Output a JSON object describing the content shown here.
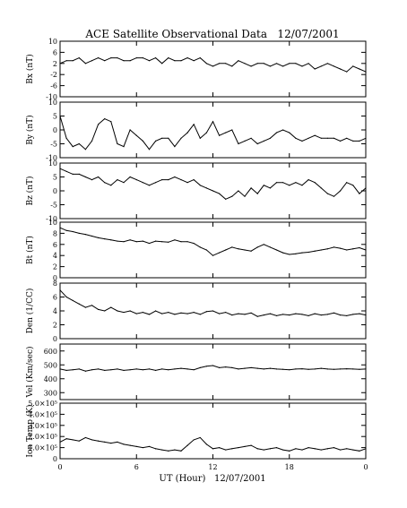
{
  "chart_data": {
    "type": "line",
    "title": "ACE Satellite Observational Data   12/07/2001",
    "xlabel": "UT (Hour)   12/07/2001",
    "x_ticks": [
      "0",
      "6",
      "12",
      "18",
      "0"
    ],
    "x_range_hours": [
      0,
      24
    ],
    "panels": [
      {
        "ylabel": "Bx (nT)",
        "ylim": [
          -10,
          10
        ],
        "yticks": [
          "10",
          "6",
          "2",
          "-2",
          "-6",
          "-10"
        ],
        "ytick_values": [
          10,
          6,
          2,
          -2,
          -6,
          -10
        ],
        "x": [
          0,
          0.5,
          1,
          1.5,
          2,
          2.5,
          3,
          3.5,
          4,
          4.5,
          5,
          5.5,
          6,
          6.5,
          7,
          7.5,
          8,
          8.5,
          9,
          9.5,
          10,
          10.5,
          11,
          11.5,
          12,
          12.5,
          13,
          13.5,
          14,
          14.5,
          15,
          15.5,
          16,
          16.5,
          17,
          17.5,
          18,
          18.5,
          19,
          19.5,
          20,
          20.5,
          21,
          21.5,
          22,
          22.5,
          23,
          23.5,
          24
        ],
        "values": [
          2,
          3,
          3,
          4,
          2,
          3,
          4,
          3,
          4,
          4,
          3,
          3,
          4,
          4,
          3,
          4,
          2,
          4,
          3,
          3,
          4,
          3,
          4,
          2,
          1,
          2,
          2,
          1,
          3,
          2,
          1,
          2,
          2,
          1,
          2,
          1,
          2,
          2,
          1,
          2,
          0,
          1,
          2,
          1,
          0,
          -1,
          1,
          0,
          -1
        ]
      },
      {
        "ylabel": "By (nT)",
        "ylim": [
          -10,
          10
        ],
        "yticks": [
          "10",
          "5",
          "0",
          "-5",
          "-10"
        ],
        "ytick_values": [
          10,
          5,
          0,
          -5,
          -10
        ],
        "x": [
          0,
          0.5,
          1,
          1.5,
          2,
          2.5,
          3,
          3.5,
          4,
          4.5,
          5,
          5.5,
          6,
          6.5,
          7,
          7.5,
          8,
          8.5,
          9,
          9.5,
          10,
          10.5,
          11,
          11.5,
          12,
          12.5,
          13,
          13.5,
          14,
          14.5,
          15,
          15.5,
          16,
          16.5,
          17,
          17.5,
          18,
          18.5,
          19,
          19.5,
          20,
          20.5,
          21,
          21.5,
          22,
          22.5,
          23,
          23.5,
          24
        ],
        "values": [
          5,
          -3,
          -6,
          -5,
          -7,
          -4,
          2,
          4,
          3,
          -5,
          -6,
          0,
          -2,
          -4,
          -7,
          -4,
          -3,
          -3,
          -6,
          -3,
          -1,
          2,
          -3,
          -1,
          3,
          -2,
          -1,
          0,
          -5,
          -4,
          -3,
          -5,
          -4,
          -3,
          -1,
          0,
          -1,
          -3,
          -4,
          -3,
          -2,
          -3,
          -3,
          -3,
          -4,
          -3,
          -4,
          -4,
          -3
        ]
      },
      {
        "ylabel": "Bz (nT)",
        "ylim": [
          -10,
          10
        ],
        "yticks": [
          "10",
          "5",
          "0",
          "-5",
          "-10"
        ],
        "ytick_values": [
          10,
          5,
          0,
          -5,
          -10
        ],
        "x": [
          0,
          0.5,
          1,
          1.5,
          2,
          2.5,
          3,
          3.5,
          4,
          4.5,
          5,
          5.5,
          6,
          6.5,
          7,
          7.5,
          8,
          8.5,
          9,
          9.5,
          10,
          10.5,
          11,
          11.5,
          12,
          12.5,
          13,
          13.5,
          14,
          14.5,
          15,
          15.5,
          16,
          16.5,
          17,
          17.5,
          18,
          18.5,
          19,
          19.5,
          20,
          20.5,
          21,
          21.5,
          22,
          22.5,
          23,
          23.5,
          24
        ],
        "values": [
          8,
          7,
          6,
          6,
          5,
          4,
          5,
          3,
          2,
          4,
          3,
          5,
          4,
          3,
          2,
          3,
          4,
          4,
          5,
          4,
          3,
          4,
          2,
          1,
          0,
          -1,
          -3,
          -2,
          0,
          -2,
          1,
          -1,
          2,
          1,
          3,
          3,
          2,
          3,
          2,
          4,
          3,
          1,
          -1,
          -2,
          0,
          3,
          2,
          -1,
          1
        ]
      },
      {
        "ylabel": "Bt (nT)",
        "ylim": [
          0,
          10
        ],
        "yticks": [
          "10",
          "8",
          "6",
          "4",
          "2",
          "0"
        ],
        "ytick_values": [
          10,
          8,
          6,
          4,
          2,
          0
        ],
        "x": [
          0,
          0.5,
          1,
          1.5,
          2,
          2.5,
          3,
          3.5,
          4,
          4.5,
          5,
          5.5,
          6,
          6.5,
          7,
          7.5,
          8,
          8.5,
          9,
          9.5,
          10,
          10.5,
          11,
          11.5,
          12,
          12.5,
          13,
          13.5,
          14,
          14.5,
          15,
          15.5,
          16,
          16.5,
          17,
          17.5,
          18,
          18.5,
          19,
          19.5,
          20,
          20.5,
          21,
          21.5,
          22,
          22.5,
          23,
          23.5,
          24
        ],
        "values": [
          9,
          8.5,
          8.3,
          8,
          7.8,
          7.5,
          7.2,
          7,
          6.8,
          6.6,
          6.5,
          6.8,
          6.5,
          6.6,
          6.2,
          6.6,
          6.5,
          6.4,
          6.8,
          6.5,
          6.5,
          6.2,
          5.5,
          5,
          4,
          4.5,
          5,
          5.5,
          5.2,
          5,
          4.8,
          5.5,
          6,
          5.5,
          5,
          4.5,
          4.2,
          4.3,
          4.5,
          4.6,
          4.8,
          5,
          5.2,
          5.5,
          5.3,
          5,
          5.2,
          5.4,
          5
        ]
      },
      {
        "ylabel": "Den (1/CC)",
        "ylim": [
          0,
          8
        ],
        "yticks": [
          "8",
          "6",
          "4",
          "2",
          "0"
        ],
        "ytick_values": [
          8,
          6,
          4,
          2,
          0
        ],
        "x": [
          0,
          0.5,
          1,
          1.5,
          2,
          2.5,
          3,
          3.5,
          4,
          4.5,
          5,
          5.5,
          6,
          6.5,
          7,
          7.5,
          8,
          8.5,
          9,
          9.5,
          10,
          10.5,
          11,
          11.5,
          12,
          12.5,
          13,
          13.5,
          14,
          14.5,
          15,
          15.5,
          16,
          16.5,
          17,
          17.5,
          18,
          18.5,
          19,
          19.5,
          20,
          20.5,
          21,
          21.5,
          22,
          22.5,
          23,
          23.5,
          24
        ],
        "values": [
          7,
          6,
          5.5,
          5,
          4.5,
          4.8,
          4.2,
          4,
          4.5,
          4,
          3.8,
          4,
          3.6,
          3.8,
          3.5,
          4,
          3.6,
          3.8,
          3.5,
          3.7,
          3.6,
          3.8,
          3.5,
          3.9,
          4,
          3.6,
          3.8,
          3.4,
          3.6,
          3.5,
          3.7,
          3.2,
          3.4,
          3.6,
          3.3,
          3.5,
          3.4,
          3.6,
          3.5,
          3.3,
          3.6,
          3.4,
          3.5,
          3.7,
          3.4,
          3.3,
          3.5,
          3.6,
          3.4
        ]
      },
      {
        "ylabel": "Vel (Km/sec)",
        "ylim": [
          250,
          650
        ],
        "yticks": [
          "600",
          "500",
          "400",
          "300"
        ],
        "ytick_values": [
          600,
          500,
          400,
          300
        ],
        "x": [
          0,
          0.5,
          1,
          1.5,
          2,
          2.5,
          3,
          3.5,
          4,
          4.5,
          5,
          5.5,
          6,
          6.5,
          7,
          7.5,
          8,
          8.5,
          9,
          9.5,
          10,
          10.5,
          11,
          11.5,
          12,
          12.5,
          13,
          13.5,
          14,
          14.5,
          15,
          15.5,
          16,
          16.5,
          17,
          17.5,
          18,
          18.5,
          19,
          19.5,
          20,
          20.5,
          21,
          21.5,
          22,
          22.5,
          23,
          23.5,
          24
        ],
        "values": [
          470,
          460,
          465,
          470,
          455,
          465,
          470,
          460,
          465,
          470,
          460,
          465,
          470,
          465,
          470,
          460,
          470,
          465,
          470,
          475,
          470,
          465,
          480,
          490,
          495,
          480,
          485,
          480,
          470,
          475,
          480,
          475,
          470,
          475,
          470,
          468,
          465,
          470,
          472,
          468,
          470,
          475,
          470,
          468,
          470,
          472,
          470,
          468,
          470
        ]
      },
      {
        "ylabel": "Ion Temp (K)",
        "ylim": [
          0,
          500000
        ],
        "yticks": [
          "5.0×10⁵",
          "4.0×10⁵",
          "3.0×10⁵",
          "2.0×10⁵",
          "1.0×10⁵",
          "0"
        ],
        "ytick_values": [
          500000,
          400000,
          300000,
          200000,
          100000,
          0
        ],
        "x": [
          0,
          0.5,
          1,
          1.5,
          2,
          2.5,
          3,
          3.5,
          4,
          4.5,
          5,
          5.5,
          6,
          6.5,
          7,
          7.5,
          8,
          8.5,
          9,
          9.5,
          10,
          10.5,
          11,
          11.5,
          12,
          12.5,
          13,
          13.5,
          14,
          14.5,
          15,
          15.5,
          16,
          16.5,
          17,
          17.5,
          18,
          18.5,
          19,
          19.5,
          20,
          20.5,
          21,
          21.5,
          22,
          22.5,
          23,
          23.5,
          24
        ],
        "values": [
          150000,
          180000,
          170000,
          160000,
          190000,
          170000,
          160000,
          150000,
          140000,
          150000,
          130000,
          120000,
          110000,
          100000,
          110000,
          90000,
          80000,
          70000,
          80000,
          70000,
          120000,
          170000,
          190000,
          130000,
          90000,
          100000,
          80000,
          90000,
          100000,
          110000,
          120000,
          90000,
          80000,
          90000,
          100000,
          80000,
          70000,
          90000,
          80000,
          100000,
          90000,
          80000,
          90000,
          100000,
          80000,
          90000,
          80000,
          70000,
          90000
        ]
      }
    ]
  }
}
